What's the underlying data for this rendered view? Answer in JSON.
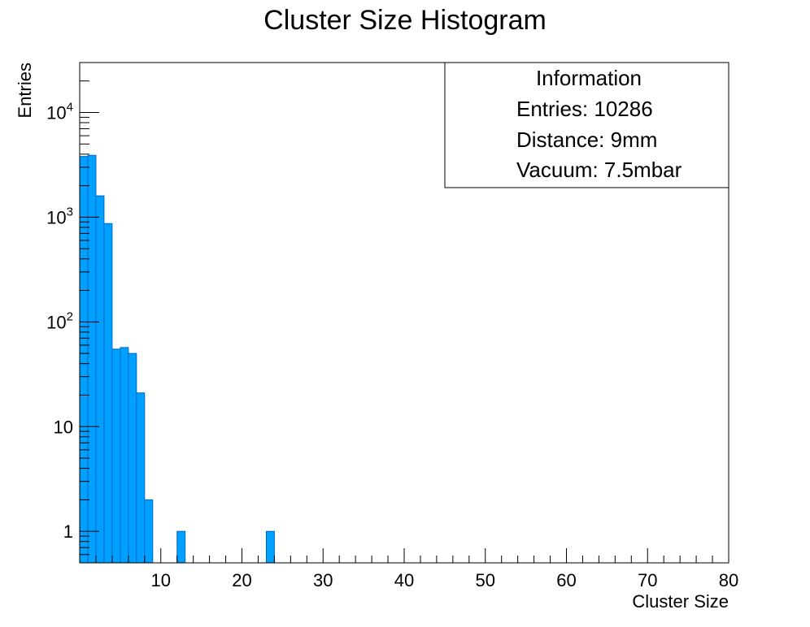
{
  "chart_data": {
    "type": "bar",
    "title": "Cluster Size Histogram",
    "xlabel": "Cluster Size",
    "ylabel": "Entries",
    "xlim": [
      0,
      80
    ],
    "ylim": [
      0.5,
      30000
    ],
    "yscale": "log",
    "grid": false,
    "bar_color": "#00a0ff",
    "x_ticks": [
      {
        "value": 10,
        "label": "10"
      },
      {
        "value": 20,
        "label": "20"
      },
      {
        "value": 30,
        "label": "30"
      },
      {
        "value": 40,
        "label": "40"
      },
      {
        "value": 50,
        "label": "50"
      },
      {
        "value": 60,
        "label": "60"
      },
      {
        "value": 70,
        "label": "70"
      },
      {
        "value": 80,
        "label": "80"
      }
    ],
    "y_ticks": [
      {
        "value": 1,
        "base": "1",
        "exp": ""
      },
      {
        "value": 10,
        "base": "10",
        "exp": ""
      },
      {
        "value": 100,
        "base": "10",
        "exp": "2"
      },
      {
        "value": 1000,
        "base": "10",
        "exp": "3"
      },
      {
        "value": 10000,
        "base": "10",
        "exp": "4"
      }
    ],
    "bins": [
      {
        "x0": 0,
        "x1": 1,
        "value": 3800
      },
      {
        "x0": 1,
        "x1": 2,
        "value": 3900
      },
      {
        "x0": 2,
        "x1": 3,
        "value": 1600
      },
      {
        "x0": 3,
        "x1": 4,
        "value": 870
      },
      {
        "x0": 4,
        "x1": 5,
        "value": 55
      },
      {
        "x0": 5,
        "x1": 6,
        "value": 57
      },
      {
        "x0": 6,
        "x1": 7,
        "value": 50
      },
      {
        "x0": 7,
        "x1": 8,
        "value": 21
      },
      {
        "x0": 8,
        "x1": 9,
        "value": 2
      },
      {
        "x0": 12,
        "x1": 13,
        "value": 1
      },
      {
        "x0": 23,
        "x1": 24,
        "value": 1
      }
    ],
    "legend": {
      "placement": "top-right",
      "title": "Information",
      "lines": [
        "Entries: 10286",
        "Distance: 9mm",
        "Vacuum: 7.5mbar"
      ]
    }
  }
}
